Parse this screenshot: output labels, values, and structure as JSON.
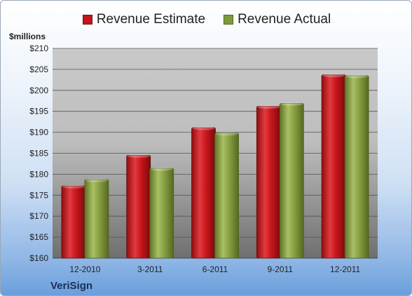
{
  "chart_data": {
    "type": "bar",
    "ylabel": "$millions",
    "categories": [
      "12-2010",
      "3-2011",
      "6-2011",
      "9-2011",
      "12-2011"
    ],
    "series": [
      {
        "name": "Revenue Estimate",
        "color": "#c0161c",
        "values": [
          177.2,
          184.5,
          191.1,
          196.2,
          203.7
        ]
      },
      {
        "name": "Revenue Actual",
        "color": "#7f9a3d",
        "values": [
          178.7,
          181.4,
          189.8,
          196.9,
          203.5
        ]
      }
    ],
    "ylim": [
      160,
      210
    ],
    "yticks": [
      "$160",
      "$165",
      "$170",
      "$175",
      "$180",
      "$185",
      "$190",
      "$195",
      "$200",
      "$205",
      "$210"
    ],
    "grid": true,
    "legend_position": "top"
  },
  "company": "VeriSign"
}
